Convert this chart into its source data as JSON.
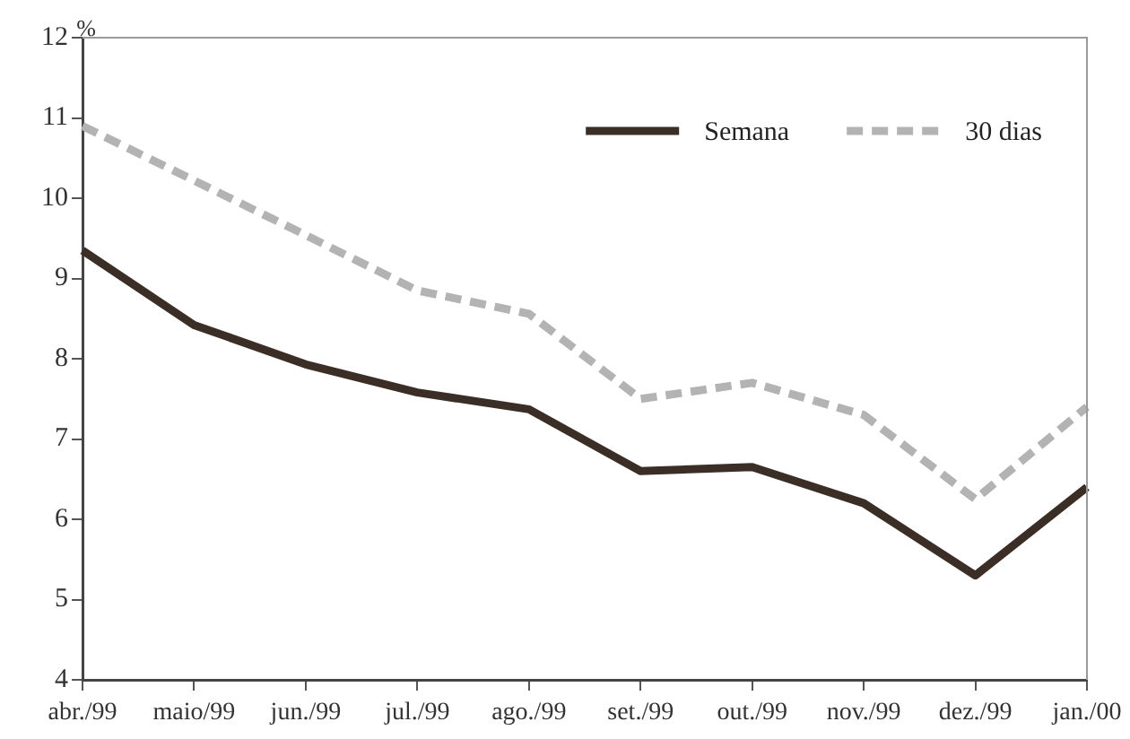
{
  "chart_data": {
    "type": "line",
    "ylabel": "%",
    "categories": [
      "abr./99",
      "maio/99",
      "jun./99",
      "jul./99",
      "ago./99",
      "set./99",
      "out./99",
      "nov./99",
      "dez./99",
      "jan./00"
    ],
    "series": [
      {
        "name": "Semana",
        "color": "#3b2e26",
        "line_style": "solid",
        "values": [
          9.35,
          8.42,
          7.93,
          7.58,
          7.37,
          6.6,
          6.65,
          6.2,
          5.3,
          6.4
        ]
      },
      {
        "name": "30 dias",
        "color": "#b3b3b3",
        "line_style": "dashed",
        "values": [
          10.9,
          10.22,
          9.54,
          8.85,
          8.56,
          7.5,
          7.7,
          7.3,
          6.25,
          7.4
        ]
      }
    ],
    "ylim": [
      4,
      12
    ],
    "yticks": [
      4,
      5,
      6,
      7,
      8,
      9,
      10,
      11,
      12
    ],
    "legend": "top right",
    "grid": false,
    "marker": "none"
  }
}
